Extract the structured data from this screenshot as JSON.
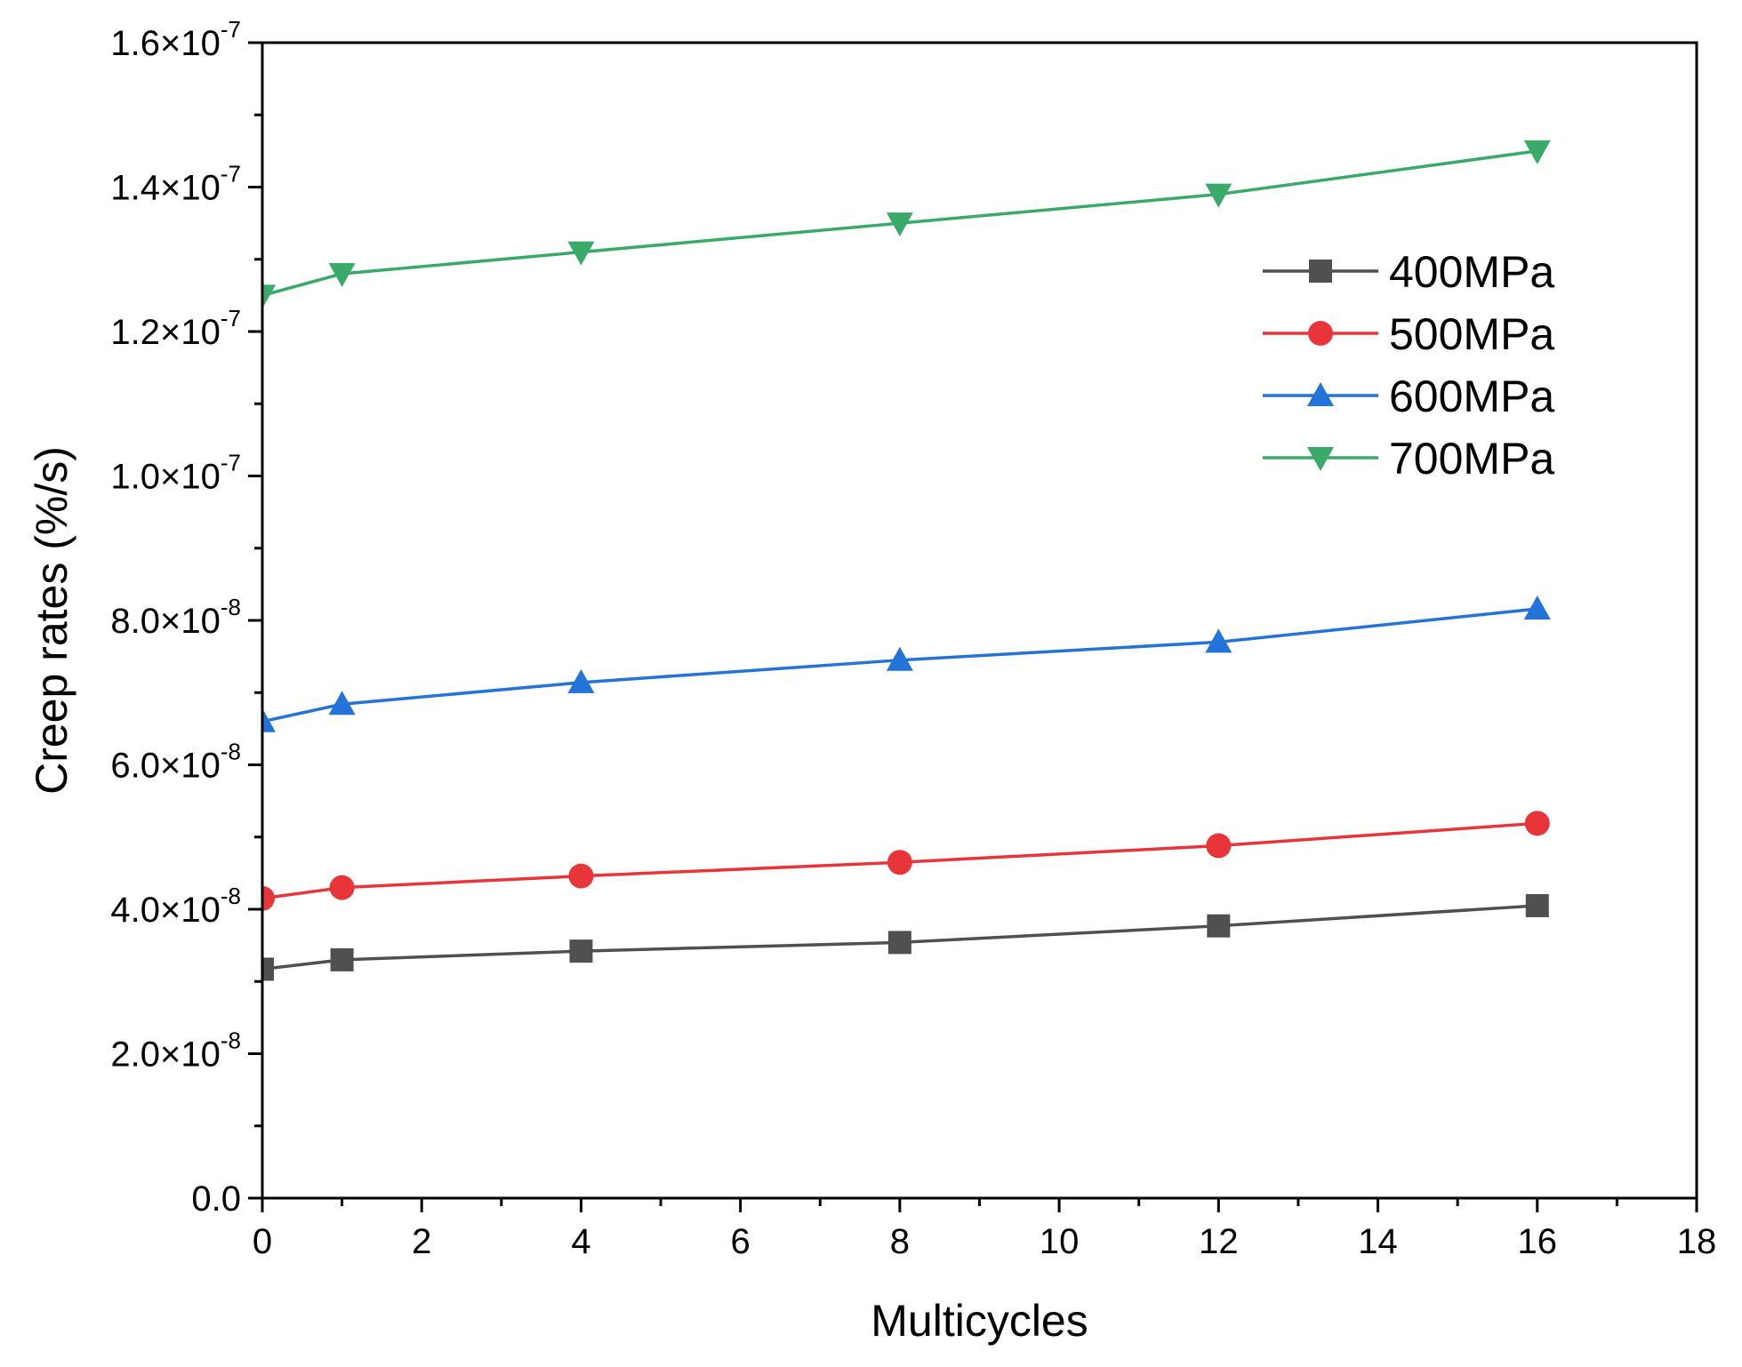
{
  "chart_data": {
    "type": "line",
    "title": "",
    "xlabel": "Multicycles",
    "ylabel": "Creep rates (%/s)",
    "xlim": [
      0,
      18
    ],
    "ylim": [
      0,
      1.6e-07
    ],
    "x_ticks": [
      0,
      2,
      4,
      6,
      8,
      10,
      12,
      14,
      16,
      18
    ],
    "x_tick_labels": [
      "0",
      "2",
      "4",
      "6",
      "8",
      "10",
      "12",
      "14",
      "16",
      "18"
    ],
    "y_ticks": [
      {
        "value": 0,
        "mantissa": "0.0",
        "exponent": ""
      },
      {
        "value": 2e-08,
        "mantissa": "2.0×10",
        "exponent": "-8"
      },
      {
        "value": 4e-08,
        "mantissa": "4.0×10",
        "exponent": "-8"
      },
      {
        "value": 6e-08,
        "mantissa": "6.0×10",
        "exponent": "-8"
      },
      {
        "value": 8e-08,
        "mantissa": "8.0×10",
        "exponent": "-8"
      },
      {
        "value": 1e-07,
        "mantissa": "1.0×10",
        "exponent": "-7"
      },
      {
        "value": 1.2e-07,
        "mantissa": "1.2×10",
        "exponent": "-7"
      },
      {
        "value": 1.4e-07,
        "mantissa": "1.4×10",
        "exponent": "-7"
      },
      {
        "value": 1.6e-07,
        "mantissa": "1.6×10",
        "exponent": "-7"
      }
    ],
    "grid": false,
    "legend_position": "top-right",
    "series": [
      {
        "name": "400MPa",
        "color": "#505050",
        "marker": "square",
        "x": [
          0,
          1,
          4,
          8,
          12,
          16
        ],
        "values": [
          3.17e-08,
          3.3e-08,
          3.42e-08,
          3.54e-08,
          3.77e-08,
          4.05e-08
        ]
      },
      {
        "name": "500MPa",
        "color": "#e8353a",
        "marker": "circle",
        "x": [
          0,
          1,
          4,
          8,
          12,
          16
        ],
        "values": [
          4.15e-08,
          4.3e-08,
          4.46e-08,
          4.65e-08,
          4.88e-08,
          5.19e-08
        ]
      },
      {
        "name": "600MPa",
        "color": "#2473d9",
        "marker": "triangle-up",
        "x": [
          0,
          1,
          4,
          8,
          12,
          16
        ],
        "values": [
          6.6e-08,
          6.84e-08,
          7.14e-08,
          7.45e-08,
          7.7e-08,
          8.16e-08
        ]
      },
      {
        "name": "700MPa",
        "color": "#3aaa6a",
        "marker": "triangle-down",
        "x": [
          0,
          1,
          4,
          8,
          12,
          16
        ],
        "values": [
          1.25e-07,
          1.28e-07,
          1.31e-07,
          1.35e-07,
          1.39e-07,
          1.45e-07
        ]
      }
    ]
  }
}
